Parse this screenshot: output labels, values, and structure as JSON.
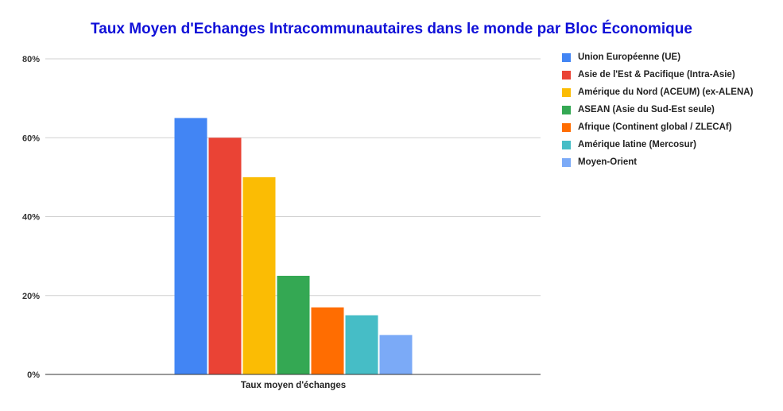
{
  "chart_data": {
    "type": "bar",
    "title": "Taux Moyen d'Echanges Intracommunautaires dans le monde par Bloc Économique",
    "categories": [
      "Taux moyen d'échanges"
    ],
    "xlabel": "",
    "ylabel": "",
    "ylim": [
      0,
      80
    ],
    "y_ticks": [
      "0%",
      "20%",
      "40%",
      "60%",
      "80%"
    ],
    "y_tick_values": [
      0,
      20,
      40,
      60,
      80
    ],
    "grid": true,
    "legend_position": "right",
    "series": [
      {
        "name": "Union Européenne (UE)",
        "values": [
          65
        ],
        "color": "#4285f4"
      },
      {
        "name": "Asie de l'Est & Pacifique (Intra-Asie)",
        "values": [
          60
        ],
        "color": "#ea4335"
      },
      {
        "name": "Amérique du Nord (ACEUM)  (ex-ALENA)",
        "values": [
          50
        ],
        "color": "#fbbc04"
      },
      {
        "name": "ASEAN (Asie du Sud-Est seule)",
        "values": [
          25
        ],
        "color": "#34a853"
      },
      {
        "name": "Afrique (Continent global / ZLECAf)",
        "values": [
          17
        ],
        "color": "#ff6d01"
      },
      {
        "name": "Amérique latine (Mercosur)",
        "values": [
          15
        ],
        "color": "#46bdc6"
      },
      {
        "name": "Moyen-Orient",
        "values": [
          10
        ],
        "color": "#7baaf7"
      }
    ]
  }
}
